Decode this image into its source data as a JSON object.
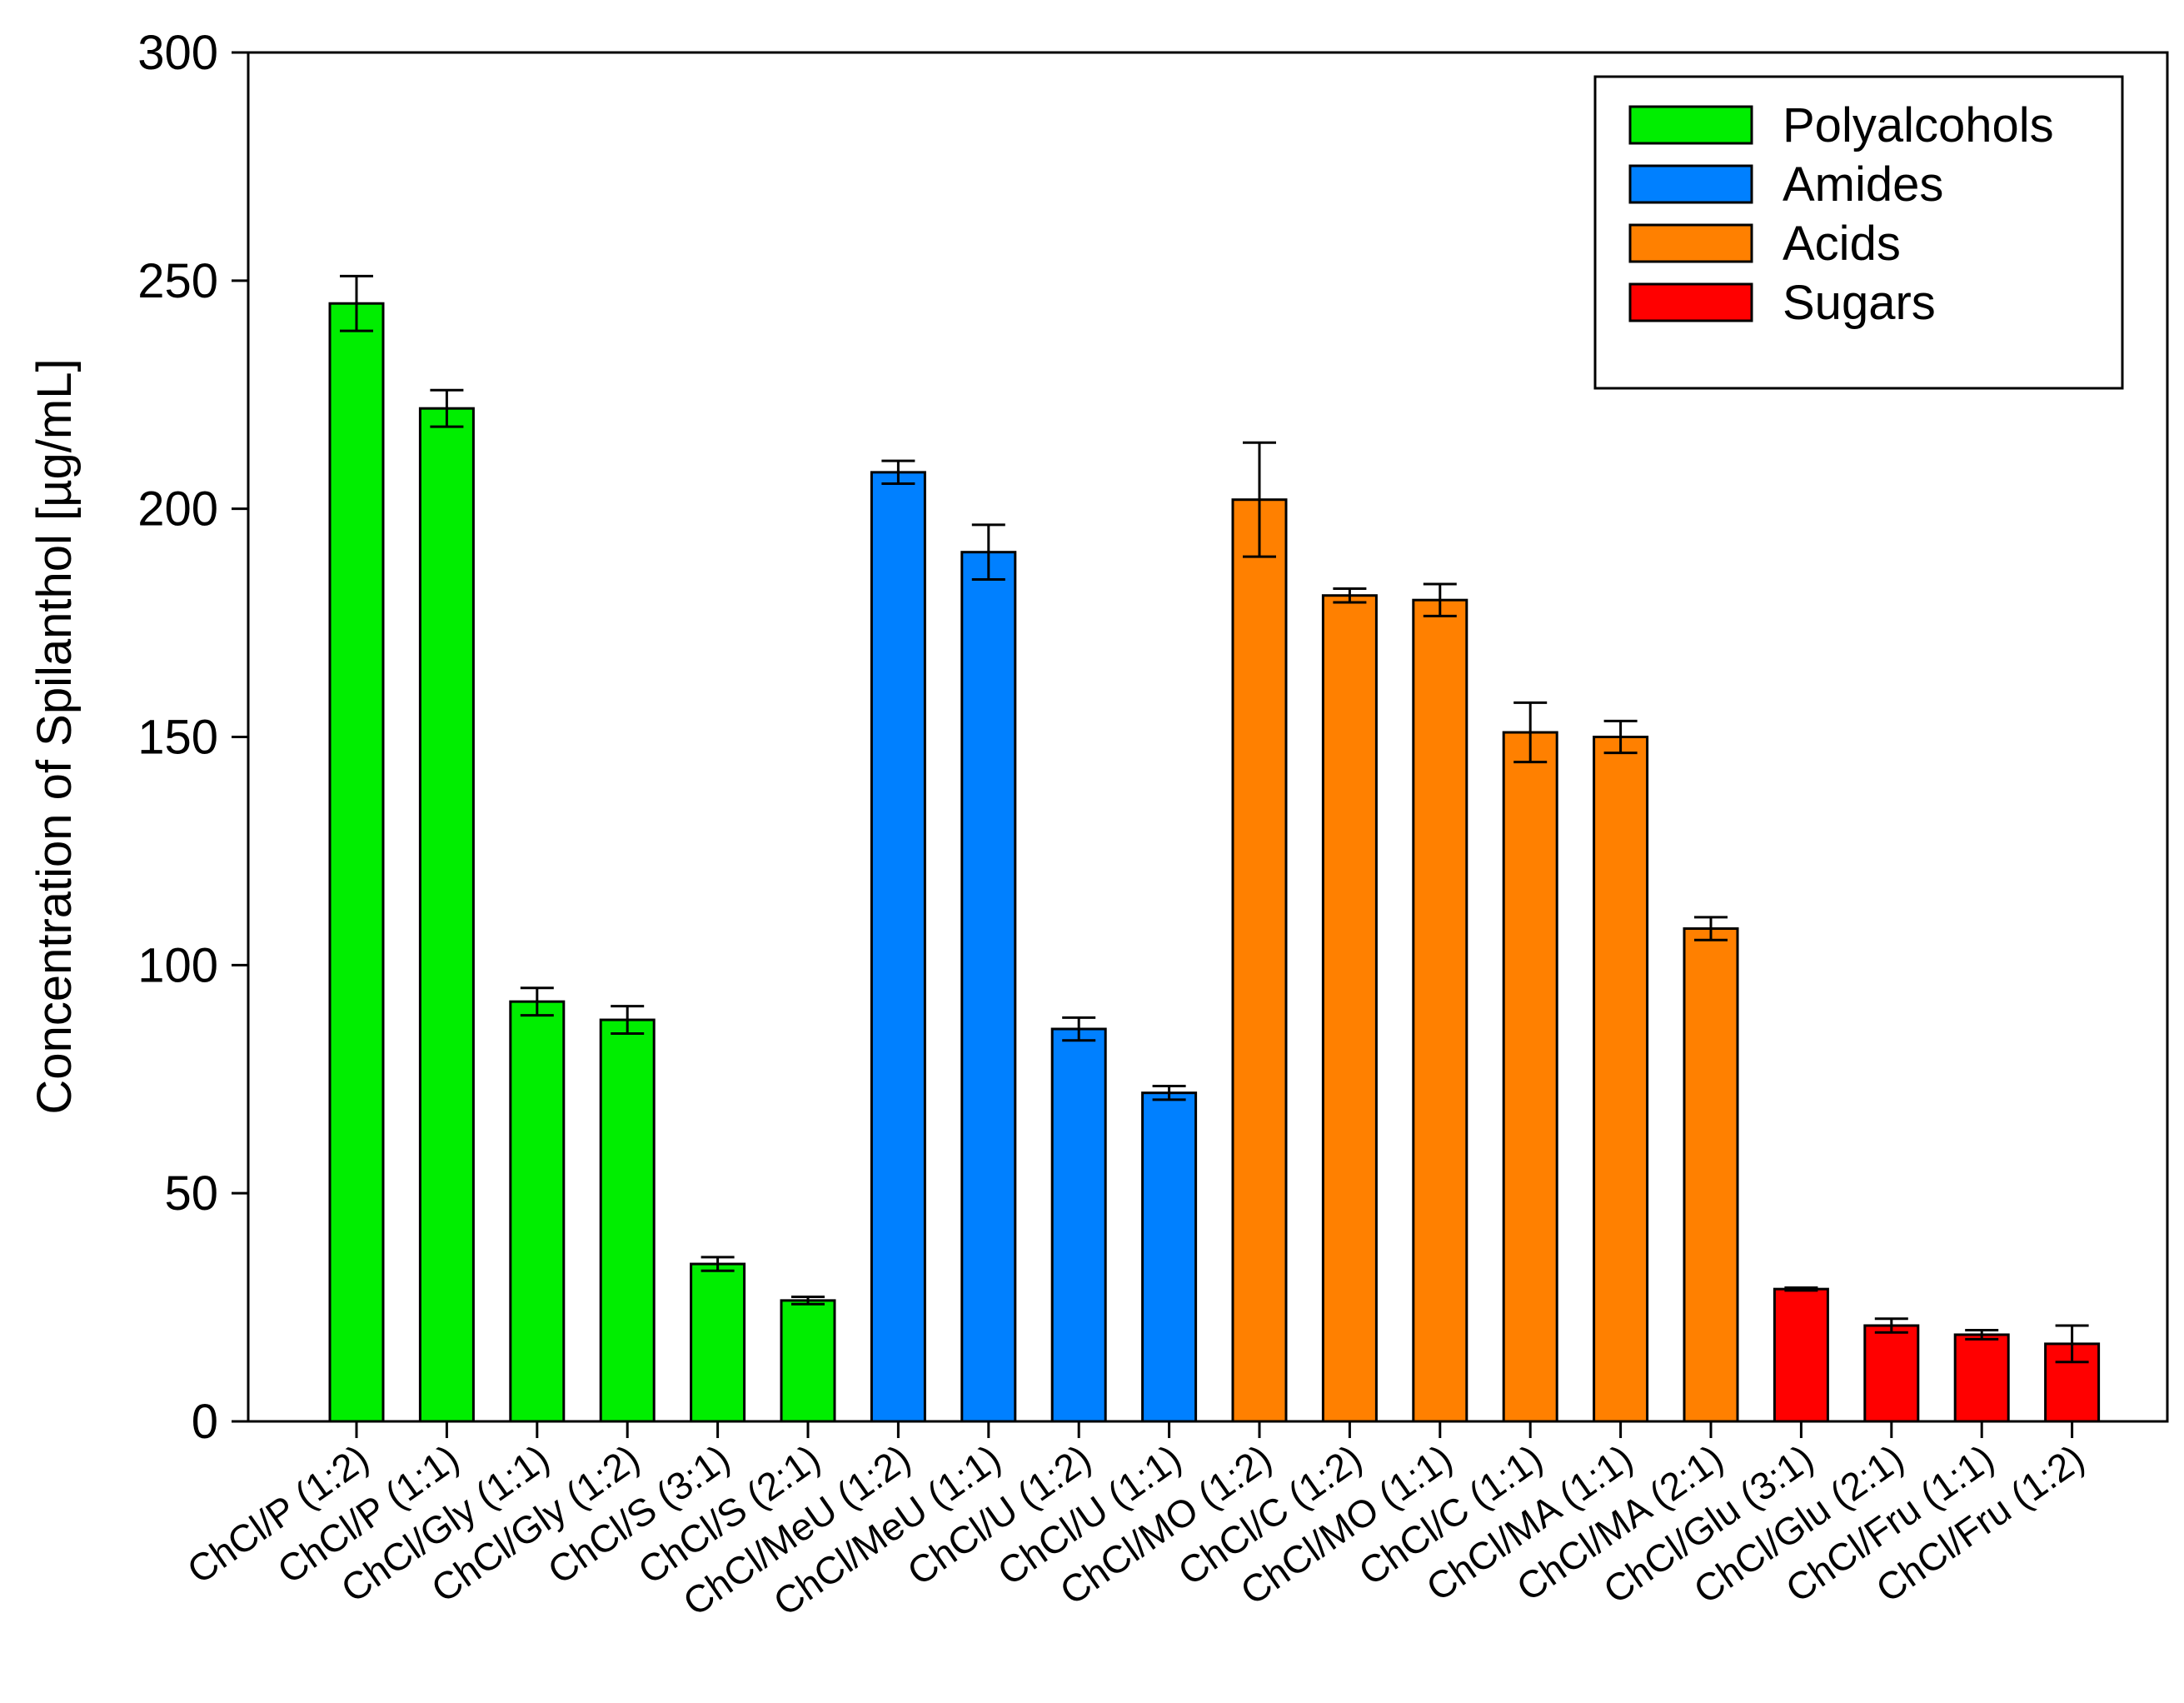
{
  "chart_data": {
    "type": "bar",
    "title": "",
    "xlabel": "",
    "ylabel": "Concentration of Spilanthol [µg/mL]",
    "ylim": [
      0,
      300
    ],
    "yticks": [
      0,
      50,
      100,
      150,
      200,
      250,
      300
    ],
    "grid": false,
    "legend_position": "top-right",
    "groups": [
      {
        "name": "Polyalcohols",
        "color": "#00ee00"
      },
      {
        "name": "Amides",
        "color": "#0080ff"
      },
      {
        "name": "Acids",
        "color": "#ff8000"
      },
      {
        "name": "Sugars",
        "color": "#ff0000"
      }
    ],
    "categories": [
      "ChCl/P (1:2)",
      "ChCl/P (1:1)",
      "ChCl/Gly (1:1)",
      "ChCl/Gly (1:2)",
      "ChCl/S (3:1)",
      "ChCl/S (2:1)",
      "ChCl/MeU (1:2)",
      "ChCl/MeU (1:1)",
      "ChCl/U (1:2)",
      "ChCl/U (1:1)",
      "ChCl/MO (1:2)",
      "ChCl/C (1:2)",
      "ChCl/MO (1:1)",
      "ChCl/C (1:1)",
      "ChCl/MA (1:1)",
      "ChCl/MA (2:1)",
      "ChCl/Glu (3:1)",
      "ChCl/Glu (2:1)",
      "ChCl/Fru (1:1)",
      "ChCl/Fru (1:2)"
    ],
    "values": [
      245,
      222,
      92,
      88,
      34.5,
      26.5,
      208,
      190.5,
      86,
      72,
      202,
      181,
      180,
      151,
      150,
      108,
      29,
      21,
      19,
      17
    ],
    "errors": [
      6,
      4,
      3,
      3,
      1.5,
      0.8,
      2.5,
      6,
      2.5,
      1.5,
      12.5,
      1.5,
      3.5,
      6.5,
      3.5,
      2.5,
      0.3,
      1.5,
      1,
      4
    ],
    "group_index": [
      0,
      0,
      0,
      0,
      0,
      0,
      1,
      1,
      1,
      1,
      2,
      2,
      2,
      2,
      2,
      2,
      3,
      3,
      3,
      3
    ]
  }
}
